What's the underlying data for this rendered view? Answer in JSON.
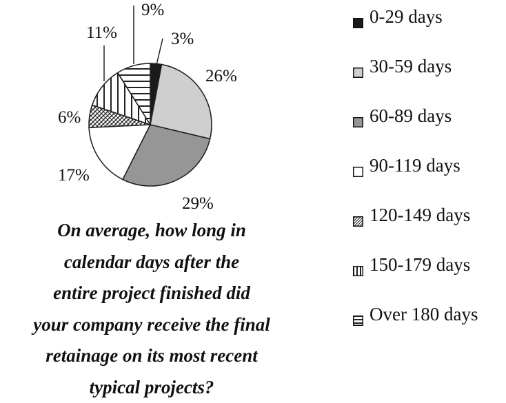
{
  "chart_data": {
    "type": "pie",
    "title": "On average, how long in calendar days after the entire project finished did your company receive the final retainage on its most recent typical projects?",
    "title_lines": [
      "On average, how long in",
      "calendar days after the",
      "entire project finished did",
      "your company receive the final",
      "retainage on its most recent",
      "typical projects?"
    ],
    "categories": [
      "0-29 days",
      "30-59 days",
      "60-89 days",
      "90-119 days",
      "120-149 days",
      "150-179 days",
      "Over 180 days"
    ],
    "values": [
      3,
      26,
      29,
      17,
      6,
      11,
      9
    ],
    "labels": [
      "3%",
      "26%",
      "29%",
      "17%",
      "6%",
      "11%",
      "9%"
    ],
    "patterns": [
      "solid-black",
      "light-gray",
      "dark-gray",
      "white",
      "diagonal-hatch",
      "vertical-stripes",
      "horizontal-stripes"
    ],
    "colors": [
      "#1a1a1a",
      "#cfcfcf",
      "#969696",
      "#ffffff",
      "#ffffff",
      "#ffffff",
      "#ffffff"
    ],
    "legend_position": "right"
  }
}
